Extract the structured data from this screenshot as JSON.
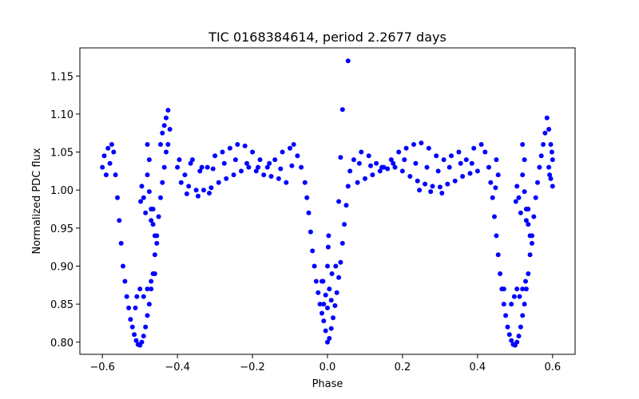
{
  "chart_data": {
    "type": "scatter",
    "title": "TIC 0168384614, period 2.2677 days",
    "xlabel": "Phase",
    "ylabel": "Normalized PDC flux",
    "xlim": [
      -0.66,
      0.66
    ],
    "ylim": [
      0.784,
      1.187
    ],
    "grid": false,
    "legend": "none",
    "marker_color": "#0000ff",
    "x_ticks": [
      -0.6,
      -0.4,
      -0.2,
      0.0,
      0.2,
      0.4,
      0.6
    ],
    "x_tick_labels": [
      "−0.6",
      "−0.4",
      "−0.2",
      "0.0",
      "0.2",
      "0.4",
      "0.6"
    ],
    "y_ticks": [
      0.8,
      0.85,
      0.9,
      0.95,
      1.0,
      1.05,
      1.1,
      1.15
    ],
    "y_tick_labels": [
      "0.80",
      "0.85",
      "0.90",
      "0.95",
      "1.00",
      "1.05",
      "1.10",
      "1.15"
    ],
    "series": [
      {
        "points": [
          [
            -0.6,
            1.03
          ],
          [
            -0.595,
            1.045
          ],
          [
            -0.59,
            1.02
          ],
          [
            -0.585,
            1.055
          ],
          [
            -0.58,
            1.035
          ],
          [
            -0.575,
            1.06
          ],
          [
            -0.57,
            1.05
          ],
          [
            -0.565,
            1.02
          ],
          [
            -0.56,
            0.99
          ],
          [
            -0.555,
            0.96
          ],
          [
            -0.55,
            0.93
          ],
          [
            -0.545,
            0.9
          ],
          [
            -0.54,
            0.88
          ],
          [
            -0.535,
            0.86
          ],
          [
            -0.53,
            0.845
          ],
          [
            -0.525,
            0.83
          ],
          [
            -0.52,
            0.82
          ],
          [
            -0.515,
            0.81
          ],
          [
            -0.51,
            0.802
          ],
          [
            -0.505,
            0.797
          ],
          [
            -0.5,
            0.796
          ],
          [
            -0.495,
            0.8
          ],
          [
            -0.49,
            0.808
          ],
          [
            -0.485,
            0.82
          ],
          [
            -0.48,
            0.835
          ],
          [
            -0.475,
            0.85
          ],
          [
            -0.47,
            0.87
          ],
          [
            -0.465,
            0.89
          ],
          [
            -0.46,
            0.915
          ],
          [
            -0.455,
            0.94
          ],
          [
            -0.45,
            0.965
          ],
          [
            -0.445,
            0.99
          ],
          [
            -0.44,
            1.01
          ],
          [
            -0.435,
            1.03
          ],
          [
            -0.43,
            1.05
          ],
          [
            -0.425,
            1.06
          ],
          [
            -0.42,
            1.08
          ],
          [
            -0.425,
            1.105
          ],
          [
            -0.43,
            1.095
          ],
          [
            -0.435,
            1.085
          ],
          [
            -0.44,
            1.075
          ],
          [
            -0.445,
            1.06
          ],
          [
            -0.508,
            0.86
          ],
          [
            -0.5,
            0.87
          ],
          [
            -0.49,
            0.86
          ],
          [
            -0.512,
            0.845
          ],
          [
            -0.48,
            0.87
          ],
          [
            -0.47,
            0.88
          ],
          [
            -0.46,
            0.89
          ],
          [
            -0.48,
            1.06
          ],
          [
            -0.475,
            1.04
          ],
          [
            -0.48,
            1.02
          ],
          [
            -0.475,
            0.998
          ],
          [
            -0.47,
            0.975
          ],
          [
            -0.465,
            0.955
          ],
          [
            -0.49,
            0.99
          ],
          [
            -0.495,
            1.005
          ],
          [
            -0.498,
            0.985
          ],
          [
            -0.485,
            0.97
          ],
          [
            -0.47,
            0.96
          ],
          [
            -0.465,
            0.975
          ],
          [
            -0.46,
            0.94
          ],
          [
            -0.455,
            0.93
          ],
          [
            -0.4,
            1.03
          ],
          [
            -0.38,
            1.02
          ],
          [
            -0.36,
            1.04
          ],
          [
            -0.34,
            1.025
          ],
          [
            -0.32,
            1.03
          ],
          [
            -0.3,
            1.045
          ],
          [
            -0.28,
            1.05
          ],
          [
            -0.26,
            1.055
          ],
          [
            -0.24,
            1.06
          ],
          [
            -0.22,
            1.058
          ],
          [
            -0.2,
            1.05
          ],
          [
            -0.18,
            1.04
          ],
          [
            -0.16,
            1.03
          ],
          [
            -0.14,
            1.04
          ],
          [
            -0.12,
            1.05
          ],
          [
            -0.1,
            1.055
          ],
          [
            -0.09,
            1.06
          ],
          [
            -0.08,
            1.045
          ],
          [
            -0.07,
            1.03
          ],
          [
            -0.39,
            1.01
          ],
          [
            -0.37,
            1.005
          ],
          [
            -0.35,
            1.0
          ],
          [
            -0.33,
            1.0
          ],
          [
            -0.31,
            1.003
          ],
          [
            -0.29,
            1.01
          ],
          [
            -0.27,
            1.015
          ],
          [
            -0.25,
            1.02
          ],
          [
            -0.23,
            1.025
          ],
          [
            -0.21,
            1.03
          ],
          [
            -0.19,
            1.025
          ],
          [
            -0.17,
            1.02
          ],
          [
            -0.15,
            1.018
          ],
          [
            -0.13,
            1.015
          ],
          [
            -0.11,
            1.01
          ],
          [
            -0.395,
            1.04
          ],
          [
            -0.365,
            1.035
          ],
          [
            -0.335,
            1.03
          ],
          [
            -0.305,
            1.028
          ],
          [
            -0.275,
            1.035
          ],
          [
            -0.245,
            1.04
          ],
          [
            -0.215,
            1.035
          ],
          [
            -0.185,
            1.03
          ],
          [
            -0.155,
            1.035
          ],
          [
            -0.125,
            1.028
          ],
          [
            -0.095,
            1.032
          ],
          [
            -0.375,
            0.995
          ],
          [
            -0.345,
            0.992
          ],
          [
            -0.315,
            0.996
          ],
          [
            -0.06,
            1.01
          ],
          [
            -0.055,
            0.99
          ],
          [
            -0.05,
            0.97
          ],
          [
            -0.045,
            0.945
          ],
          [
            -0.04,
            0.92
          ],
          [
            -0.035,
            0.9
          ],
          [
            -0.03,
            0.88
          ],
          [
            -0.025,
            0.865
          ],
          [
            -0.02,
            0.85
          ],
          [
            -0.015,
            0.838
          ],
          [
            -0.01,
            0.828
          ],
          [
            -0.005,
            0.815
          ],
          [
            0.0,
            0.8
          ],
          [
            0.005,
            0.805
          ],
          [
            0.01,
            0.818
          ],
          [
            0.015,
            0.832
          ],
          [
            0.02,
            0.848
          ],
          [
            0.025,
            0.865
          ],
          [
            0.03,
            0.885
          ],
          [
            0.035,
            0.905
          ],
          [
            0.04,
            0.93
          ],
          [
            0.045,
            0.955
          ],
          [
            0.05,
            0.98
          ],
          [
            0.055,
            1.005
          ],
          [
            0.06,
            1.025
          ],
          [
            -0.01,
            0.85
          ],
          [
            0.0,
            0.845
          ],
          [
            0.01,
            0.855
          ],
          [
            -0.005,
            0.862
          ],
          [
            0.005,
            0.87
          ],
          [
            -0.015,
            0.88
          ],
          [
            0.012,
            0.89
          ],
          [
            0.0,
            0.9
          ],
          [
            0.002,
            0.925
          ],
          [
            0.003,
            0.94
          ],
          [
            -0.012,
            0.88
          ],
          [
            0.022,
            0.9
          ],
          [
            0.03,
            0.985
          ],
          [
            0.035,
            1.043
          ],
          [
            0.04,
            1.106
          ],
          [
            0.055,
            1.17
          ],
          [
            0.07,
            1.04
          ],
          [
            0.09,
            1.05
          ],
          [
            0.11,
            1.045
          ],
          [
            0.13,
            1.035
          ],
          [
            0.15,
            1.03
          ],
          [
            0.17,
            1.04
          ],
          [
            0.19,
            1.05
          ],
          [
            0.21,
            1.055
          ],
          [
            0.23,
            1.06
          ],
          [
            0.25,
            1.062
          ],
          [
            0.27,
            1.055
          ],
          [
            0.29,
            1.045
          ],
          [
            0.31,
            1.04
          ],
          [
            0.33,
            1.045
          ],
          [
            0.35,
            1.05
          ],
          [
            0.37,
            1.04
          ],
          [
            0.39,
            1.055
          ],
          [
            0.41,
            1.06
          ],
          [
            0.42,
            1.05
          ],
          [
            0.08,
            1.01
          ],
          [
            0.1,
            1.015
          ],
          [
            0.12,
            1.02
          ],
          [
            0.14,
            1.025
          ],
          [
            0.16,
            1.028
          ],
          [
            0.18,
            1.03
          ],
          [
            0.2,
            1.025
          ],
          [
            0.22,
            1.018
          ],
          [
            0.24,
            1.012
          ],
          [
            0.26,
            1.008
          ],
          [
            0.28,
            1.005
          ],
          [
            0.3,
            1.004
          ],
          [
            0.32,
            1.008
          ],
          [
            0.34,
            1.012
          ],
          [
            0.36,
            1.018
          ],
          [
            0.38,
            1.022
          ],
          [
            0.4,
            1.025
          ],
          [
            0.085,
            1.035
          ],
          [
            0.115,
            1.032
          ],
          [
            0.145,
            1.03
          ],
          [
            0.175,
            1.035
          ],
          [
            0.205,
            1.04
          ],
          [
            0.235,
            1.035
          ],
          [
            0.265,
            1.03
          ],
          [
            0.295,
            1.025
          ],
          [
            0.325,
            1.03
          ],
          [
            0.355,
            1.035
          ],
          [
            0.385,
            1.035
          ],
          [
            0.245,
            1.0
          ],
          [
            0.275,
            0.998
          ],
          [
            0.305,
            0.996
          ],
          [
            0.43,
            1.03
          ],
          [
            0.435,
            1.01
          ],
          [
            0.44,
            0.99
          ],
          [
            0.445,
            0.965
          ],
          [
            0.45,
            0.94
          ],
          [
            0.455,
            0.915
          ],
          [
            0.46,
            0.89
          ],
          [
            0.465,
            0.87
          ],
          [
            0.47,
            0.85
          ],
          [
            0.475,
            0.835
          ],
          [
            0.48,
            0.82
          ],
          [
            0.485,
            0.81
          ],
          [
            0.49,
            0.802
          ],
          [
            0.495,
            0.797
          ],
          [
            0.5,
            0.796
          ],
          [
            0.505,
            0.8
          ],
          [
            0.51,
            0.808
          ],
          [
            0.515,
            0.82
          ],
          [
            0.52,
            0.835
          ],
          [
            0.525,
            0.85
          ],
          [
            0.53,
            0.87
          ],
          [
            0.535,
            0.89
          ],
          [
            0.54,
            0.915
          ],
          [
            0.545,
            0.94
          ],
          [
            0.55,
            0.965
          ],
          [
            0.555,
            0.99
          ],
          [
            0.56,
            1.01
          ],
          [
            0.565,
            1.03
          ],
          [
            0.57,
            1.045
          ],
          [
            0.575,
            1.06
          ],
          [
            0.58,
            1.075
          ],
          [
            0.585,
            1.095
          ],
          [
            0.59,
            1.08
          ],
          [
            0.595,
            1.06
          ],
          [
            0.6,
            1.04
          ],
          [
            0.498,
            0.86
          ],
          [
            0.505,
            0.87
          ],
          [
            0.512,
            0.86
          ],
          [
            0.49,
            0.85
          ],
          [
            0.52,
            0.87
          ],
          [
            0.528,
            0.88
          ],
          [
            0.47,
            0.87
          ],
          [
            0.52,
            1.06
          ],
          [
            0.525,
            1.04
          ],
          [
            0.52,
            1.02
          ],
          [
            0.525,
            0.998
          ],
          [
            0.53,
            0.975
          ],
          [
            0.535,
            0.955
          ],
          [
            0.51,
            0.99
          ],
          [
            0.505,
            1.005
          ],
          [
            0.502,
            0.985
          ],
          [
            0.515,
            0.97
          ],
          [
            0.53,
            0.96
          ],
          [
            0.535,
            0.975
          ],
          [
            0.54,
            0.94
          ],
          [
            0.545,
            0.93
          ],
          [
            0.59,
            1.03
          ],
          [
            0.595,
            1.015
          ],
          [
            0.6,
            1.005
          ],
          [
            0.598,
            1.05
          ],
          [
            0.592,
            1.02
          ],
          [
            0.45,
            1.04
          ],
          [
            0.455,
            1.02
          ],
          [
            0.448,
            1.003
          ]
        ]
      }
    ]
  }
}
